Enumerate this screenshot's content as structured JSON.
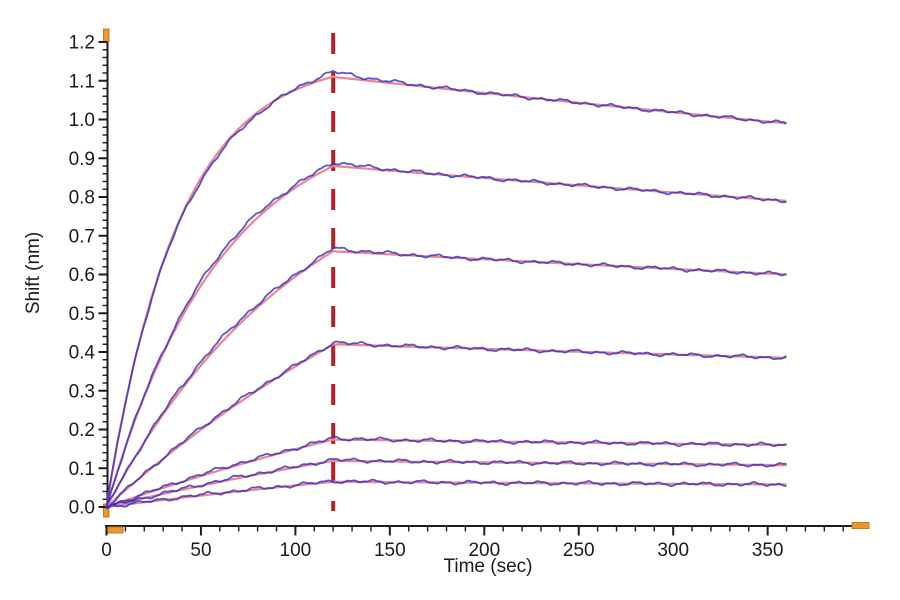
{
  "chart_data": {
    "type": "line",
    "title": "",
    "xlabel": "Time (sec)",
    "ylabel": "Shift (nm)",
    "xlim": [
      0,
      395
    ],
    "ylim": [
      -0.05,
      1.25
    ],
    "grid": false,
    "legend": "none",
    "x_major_ticks": [
      0,
      50,
      100,
      150,
      200,
      250,
      300,
      350
    ],
    "x_minor_step": 10,
    "x_minor_end": 390,
    "y_major_ticks": [
      0.0,
      0.1,
      0.2,
      0.3,
      0.4,
      0.5,
      0.6,
      0.7,
      0.8,
      0.9,
      1.0,
      1.1,
      1.2
    ],
    "y_minor_step": 0.02,
    "association_end_sec": 120,
    "dissociation_end_sec": 360,
    "phase_marker": {
      "type": "vertical-dashed-line",
      "x_sec": 120,
      "color": "#bb2026"
    },
    "axis_color": "#1c1c1c",
    "axis_end_cap_color": "#e9982f",
    "axis_end_cap_edge": "#c27b15",
    "data_color": "#3232c6",
    "fit_color": "#f18588",
    "series": [
      {
        "name": "trace-1",
        "model": {
          "A": 1.16,
          "k_obs": 0.0263,
          "peak_nm": 1.11,
          "end_nm": 0.99
        },
        "keypoints": {
          "t_sec": [
            0,
            20,
            40,
            60,
            80,
            100,
            120,
            180,
            240,
            300,
            360
          ],
          "shift_nm": [
            0,
            0.474,
            0.755,
            0.92,
            1.018,
            1.076,
            1.11,
            1.079,
            1.048,
            1.019,
            0.99
          ]
        }
      },
      {
        "name": "trace-2",
        "model": {
          "A": 1.025,
          "k_obs": 0.0163,
          "peak_nm": 0.88,
          "end_nm": 0.79
        },
        "keypoints": {
          "t_sec": [
            0,
            20,
            40,
            60,
            80,
            100,
            120,
            180,
            240,
            300,
            360
          ],
          "shift_nm": [
            0,
            0.285,
            0.491,
            0.64,
            0.747,
            0.824,
            0.88,
            0.857,
            0.834,
            0.812,
            0.79
          ]
        }
      },
      {
        "name": "trace-3",
        "model": {
          "A": 0.98,
          "k_obs": 0.00933,
          "peak_nm": 0.66,
          "end_nm": 0.6
        },
        "keypoints": {
          "t_sec": [
            0,
            20,
            40,
            60,
            80,
            100,
            120,
            180,
            240,
            300,
            360
          ],
          "shift_nm": [
            0,
            0.167,
            0.305,
            0.42,
            0.515,
            0.595,
            0.66,
            0.644,
            0.629,
            0.614,
            0.6
          ]
        }
      },
      {
        "name": "trace-4",
        "model": {
          "A": 1.1,
          "k_obs": 0.004,
          "peak_nm": 0.42,
          "end_nm": 0.385
        },
        "keypoints": {
          "t_sec": [
            0,
            20,
            40,
            60,
            80,
            100,
            120,
            180,
            240,
            300,
            360
          ],
          "shift_nm": [
            0,
            0.085,
            0.163,
            0.235,
            0.301,
            0.363,
            0.42,
            0.411,
            0.402,
            0.393,
            0.385
          ]
        }
      },
      {
        "name": "trace-5",
        "model": {
          "A": 0.6,
          "k_obs": 0.00286,
          "peak_nm": 0.174,
          "end_nm": 0.16
        },
        "keypoints": {
          "t_sec": [
            0,
            20,
            40,
            60,
            80,
            100,
            120,
            180,
            240,
            300,
            360
          ],
          "shift_nm": [
            0,
            0.033,
            0.065,
            0.095,
            0.123,
            0.149,
            0.174,
            0.17,
            0.167,
            0.163,
            0.16
          ]
        }
      },
      {
        "name": "trace-6",
        "model": {
          "A": 0.42,
          "k_obs": 0.00279,
          "peak_nm": 0.119,
          "end_nm": 0.108
        },
        "keypoints": {
          "t_sec": [
            0,
            20,
            40,
            60,
            80,
            100,
            120,
            180,
            240,
            300,
            360
          ],
          "shift_nm": [
            0,
            0.023,
            0.044,
            0.065,
            0.084,
            0.102,
            0.119,
            0.116,
            0.113,
            0.111,
            0.108
          ]
        }
      },
      {
        "name": "trace-7",
        "model": {
          "A": 0.245,
          "k_obs": 0.00257,
          "peak_nm": 0.065,
          "end_nm": 0.058
        },
        "keypoints": {
          "t_sec": [
            0,
            20,
            40,
            60,
            80,
            100,
            120,
            180,
            240,
            300,
            360
          ],
          "shift_nm": [
            0,
            0.012,
            0.024,
            0.035,
            0.046,
            0.056,
            0.065,
            0.063,
            0.062,
            0.06,
            0.058
          ]
        }
      }
    ]
  }
}
